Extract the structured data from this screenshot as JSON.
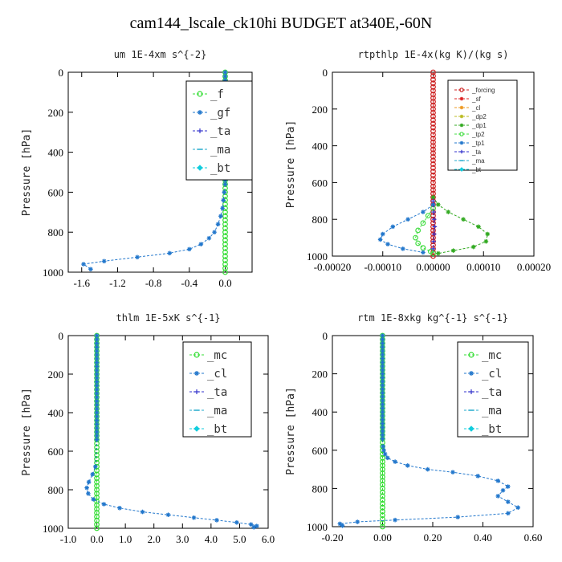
{
  "title": "cam144_lscale_ck10hi  BUDGET at340E,-60N",
  "chart_data": [
    {
      "type": "line",
      "title": "um   1E-4xm s^{-2}",
      "ylabel": "Pressure [hPa]",
      "ylim": [
        1000,
        0
      ],
      "xlim": [
        -1.75,
        0.3
      ],
      "xticks": [
        -1.6,
        -1.2,
        -0.8,
        -0.4,
        0.0
      ],
      "xtick_labels": [
        "-1.6",
        "-1.2",
        "-0.8",
        "-0.4",
        "0.0"
      ],
      "yticks": [
        0,
        200,
        400,
        600,
        800,
        1000
      ],
      "legend_position": "top-right",
      "series": [
        {
          "name": "_f",
          "color": "#33dd33",
          "marker": "circle",
          "x": [
            0,
            0,
            0,
            0,
            0,
            0,
            0,
            0,
            0,
            0,
            0,
            0,
            0,
            0,
            0,
            0,
            0,
            0,
            0,
            0,
            0,
            0,
            0,
            0,
            0,
            0,
            0,
            0,
            0,
            0,
            0,
            0,
            0,
            0,
            0,
            0,
            0,
            0,
            0,
            0,
            0,
            0,
            0,
            0,
            0,
            0,
            0,
            0,
            0,
            0,
            0
          ],
          "y": [
            0,
            20,
            40,
            60,
            80,
            100,
            120,
            140,
            160,
            180,
            200,
            220,
            240,
            260,
            280,
            300,
            320,
            340,
            360,
            380,
            400,
            420,
            440,
            460,
            480,
            500,
            520,
            540,
            560,
            580,
            600,
            620,
            640,
            660,
            680,
            700,
            720,
            740,
            760,
            780,
            800,
            820,
            840,
            860,
            880,
            900,
            920,
            940,
            960,
            980,
            1000
          ]
        },
        {
          "name": "_gf",
          "color": "#2277cc",
          "marker": "star",
          "x": [
            0,
            0,
            0,
            0,
            0,
            0,
            0,
            0,
            0,
            0,
            0,
            0,
            0,
            0,
            0,
            0,
            0,
            0,
            0,
            0,
            0,
            0,
            0,
            0,
            0,
            0,
            0,
            0,
            0,
            -0.01,
            -0.02,
            -0.03,
            -0.05,
            -0.08,
            -0.12,
            -0.18,
            -0.27,
            -0.4,
            -0.62,
            -0.98,
            -1.35,
            -1.58,
            -1.5
          ],
          "y": [
            0,
            20,
            40,
            60,
            80,
            100,
            120,
            140,
            160,
            180,
            200,
            220,
            240,
            260,
            280,
            300,
            320,
            340,
            360,
            380,
            400,
            420,
            440,
            460,
            480,
            500,
            520,
            540,
            560,
            600,
            640,
            680,
            720,
            760,
            800,
            830,
            860,
            885,
            905,
            925,
            945,
            960,
            985
          ]
        },
        {
          "name": "_ta",
          "color": "#3333cc",
          "marker": "plus",
          "x": [],
          "y": []
        },
        {
          "name": "_ma",
          "color": "#22aacc",
          "marker": "dash",
          "x": [],
          "y": []
        },
        {
          "name": "_bt",
          "color": "#11ccdd",
          "marker": "diamond",
          "x": [],
          "y": []
        }
      ]
    },
    {
      "type": "line",
      "title": "rtpthlp   1E-4x(kg K)/(kg s)",
      "ylabel": "Pressure [hPa]",
      "ylim": [
        1000,
        0
      ],
      "xlim": [
        -0.0002,
        0.0002
      ],
      "xticks": [
        -0.0002,
        -0.0001,
        0.0,
        0.0001,
        0.0002
      ],
      "xtick_labels": [
        "-0.00020",
        "-0.00010",
        "0.00000",
        "0.00010",
        "0.00020"
      ],
      "yticks": [
        0,
        200,
        400,
        600,
        800,
        1000
      ],
      "legend_position": "top-right",
      "series": [
        {
          "name": "_forcing",
          "color": "#cc2222",
          "marker": "circle",
          "x": [
            0,
            0,
            0,
            0,
            0,
            0,
            0,
            0,
            0,
            0,
            0,
            0,
            0,
            0,
            0,
            0,
            0,
            0,
            0,
            0,
            0,
            0,
            0,
            0,
            0,
            0,
            0,
            0,
            0,
            0,
            0,
            0,
            0,
            0,
            0,
            0,
            0,
            0,
            0,
            0,
            0,
            0,
            0,
            0,
            0,
            0,
            0,
            0,
            0,
            0,
            0
          ],
          "y": [
            0,
            20,
            40,
            60,
            80,
            100,
            120,
            140,
            160,
            180,
            200,
            220,
            240,
            260,
            280,
            300,
            320,
            340,
            360,
            380,
            400,
            420,
            440,
            460,
            480,
            500,
            520,
            540,
            560,
            580,
            600,
            620,
            640,
            660,
            680,
            700,
            720,
            740,
            760,
            780,
            800,
            820,
            840,
            860,
            880,
            900,
            920,
            940,
            960,
            980,
            1000
          ]
        },
        {
          "name": "_sf",
          "color": "#dd2222",
          "marker": "star",
          "x": [],
          "y": []
        },
        {
          "name": "_cl",
          "color": "#ee9922",
          "marker": "star",
          "x": [],
          "y": []
        },
        {
          "name": "_dp2",
          "color": "#bbbb22",
          "marker": "star",
          "x": [],
          "y": []
        },
        {
          "name": "_dp1",
          "color": "#33aa22",
          "marker": "star",
          "x": [
            0.0,
            1e-05,
            3e-05,
            6e-05,
            9e-05,
            0.000108,
            0.000105,
            8e-05,
            4e-05,
            1e-05
          ],
          "y": [
            680,
            720,
            760,
            800,
            840,
            880,
            920,
            950,
            970,
            985
          ]
        },
        {
          "name": "_tp2",
          "color": "#44dd44",
          "marker": "circle",
          "x": [
            0.0,
            -1e-05,
            -2e-05,
            -3e-05,
            -3.5e-05,
            -3e-05,
            -2e-05,
            -5e-06,
            0.0
          ],
          "y": [
            740,
            780,
            820,
            860,
            900,
            930,
            955,
            975,
            985
          ]
        },
        {
          "name": "_tp1",
          "color": "#2277cc",
          "marker": "star",
          "x": [
            0.0,
            -2e-05,
            -5e-05,
            -8e-05,
            -0.0001,
            -0.000105,
            -9e-05,
            -6e-05,
            -2e-05
          ],
          "y": [
            720,
            760,
            800,
            840,
            880,
            910,
            935,
            960,
            980
          ]
        },
        {
          "name": "_ta",
          "color": "#3333cc",
          "marker": "plus",
          "x": [
            0,
            1e-06,
            2e-06,
            3e-06,
            2e-06,
            1e-06,
            0
          ],
          "y": [
            700,
            760,
            800,
            840,
            880,
            920,
            960
          ]
        },
        {
          "name": "_ma",
          "color": "#22aacc",
          "marker": "dash",
          "x": [],
          "y": []
        },
        {
          "name": "_bt",
          "color": "#11ccdd",
          "marker": "diamond",
          "x": [],
          "y": []
        }
      ]
    },
    {
      "type": "line",
      "title": "thlm   1E-5xK s^{-1}",
      "ylabel": "Pressure [hPa]",
      "ylim": [
        1000,
        0
      ],
      "xlim": [
        -1.0,
        6.0
      ],
      "xticks": [
        -1.0,
        0.0,
        1.0,
        2.0,
        3.0,
        4.0,
        5.0,
        6.0
      ],
      "xtick_labels": [
        "-1.0",
        "0.0",
        "1.0",
        "2.0",
        "3.0",
        "4.0",
        "5.0",
        "6.0"
      ],
      "yticks": [
        0,
        200,
        400,
        600,
        800,
        1000
      ],
      "legend_position": "top-right",
      "series": [
        {
          "name": "_mc",
          "color": "#33dd33",
          "marker": "circle",
          "x": [
            0,
            0,
            0,
            0,
            0,
            0,
            0,
            0,
            0,
            0,
            0,
            0,
            0,
            0,
            0,
            0,
            0,
            0,
            0,
            0,
            0,
            0,
            0,
            0,
            0,
            0,
            0,
            0,
            0,
            0,
            0,
            0,
            0,
            0,
            0,
            0,
            0,
            0,
            0,
            0,
            0,
            0,
            0,
            0,
            0,
            0,
            0,
            0,
            0,
            0,
            0
          ],
          "y": [
            0,
            20,
            40,
            60,
            80,
            100,
            120,
            140,
            160,
            180,
            200,
            220,
            240,
            260,
            280,
            300,
            320,
            340,
            360,
            380,
            400,
            420,
            440,
            460,
            480,
            500,
            520,
            540,
            560,
            580,
            600,
            620,
            640,
            660,
            680,
            700,
            720,
            740,
            760,
            780,
            800,
            820,
            840,
            860,
            880,
            900,
            920,
            940,
            960,
            980,
            1000
          ]
        },
        {
          "name": "_cl",
          "color": "#2277cc",
          "marker": "star",
          "x": [
            0,
            0,
            0,
            0,
            0,
            0,
            0,
            0,
            0,
            0,
            0,
            0,
            0,
            0,
            0,
            0,
            0,
            0,
            0,
            0,
            0,
            0,
            0,
            0,
            0,
            0,
            0,
            0,
            -0.05,
            -0.15,
            -0.28,
            -0.35,
            -0.3,
            -0.12,
            0.25,
            0.8,
            1.6,
            2.5,
            3.4,
            4.2,
            4.9,
            5.4,
            5.6,
            5.5
          ],
          "y": [
            0,
            20,
            40,
            60,
            80,
            100,
            120,
            140,
            160,
            180,
            200,
            220,
            240,
            260,
            280,
            300,
            320,
            340,
            360,
            380,
            400,
            420,
            440,
            460,
            480,
            500,
            520,
            540,
            680,
            720,
            760,
            790,
            820,
            850,
            875,
            895,
            915,
            930,
            945,
            958,
            970,
            980,
            988,
            995
          ]
        },
        {
          "name": "_ta",
          "color": "#3333cc",
          "marker": "plus",
          "x": [],
          "y": []
        },
        {
          "name": "_ma",
          "color": "#22aacc",
          "marker": "dash",
          "x": [],
          "y": []
        },
        {
          "name": "_bt",
          "color": "#11ccdd",
          "marker": "diamond",
          "x": [],
          "y": []
        }
      ]
    },
    {
      "type": "line",
      "title": "rtm   1E-8xkg kg^{-1} s^{-1}",
      "ylabel": "Pressure [hPa]",
      "ylim": [
        1000,
        0
      ],
      "xlim": [
        -0.2,
        0.6
      ],
      "xticks": [
        -0.2,
        0.0,
        0.2,
        0.4,
        0.6
      ],
      "xtick_labels": [
        "-0.20",
        "0.00",
        "0.20",
        "0.40",
        "0.60"
      ],
      "yticks": [
        0,
        200,
        400,
        600,
        800,
        1000
      ],
      "legend_position": "top-right",
      "series": [
        {
          "name": "_mc",
          "color": "#33dd33",
          "marker": "circle",
          "x": [
            0,
            0,
            0,
            0,
            0,
            0,
            0,
            0,
            0,
            0,
            0,
            0,
            0,
            0,
            0,
            0,
            0,
            0,
            0,
            0,
            0,
            0,
            0,
            0,
            0,
            0,
            0,
            0,
            0,
            0,
            0,
            0,
            0,
            0,
            0,
            0,
            0,
            0,
            0,
            0,
            0,
            0,
            0,
            0,
            0,
            0,
            0,
            0,
            0,
            0,
            0
          ],
          "y": [
            0,
            20,
            40,
            60,
            80,
            100,
            120,
            140,
            160,
            180,
            200,
            220,
            240,
            260,
            280,
            300,
            320,
            340,
            360,
            380,
            400,
            420,
            440,
            460,
            480,
            500,
            520,
            540,
            560,
            580,
            600,
            620,
            640,
            660,
            680,
            700,
            720,
            740,
            760,
            780,
            800,
            820,
            840,
            860,
            880,
            900,
            920,
            940,
            960,
            980,
            1000
          ]
        },
        {
          "name": "_cl",
          "color": "#2277cc",
          "marker": "star",
          "x": [
            0,
            0,
            0,
            0,
            0,
            0,
            0,
            0,
            0,
            0,
            0,
            0,
            0,
            0,
            0,
            0,
            0,
            0,
            0,
            0,
            0,
            0,
            0,
            0,
            0,
            0,
            0,
            0,
            0.002,
            0.005,
            0.01,
            0.02,
            0.05,
            0.1,
            0.18,
            0.28,
            0.38,
            0.46,
            0.5,
            0.48,
            0.46,
            0.5,
            0.54,
            0.5,
            0.3,
            0.05,
            -0.1,
            -0.17,
            -0.16
          ],
          "y": [
            0,
            20,
            40,
            60,
            80,
            100,
            120,
            140,
            160,
            180,
            200,
            220,
            240,
            260,
            280,
            300,
            320,
            340,
            360,
            380,
            400,
            420,
            440,
            460,
            480,
            500,
            520,
            540,
            580,
            600,
            620,
            640,
            660,
            680,
            700,
            715,
            735,
            760,
            790,
            810,
            840,
            870,
            900,
            930,
            950,
            965,
            975,
            985,
            995
          ]
        },
        {
          "name": "_ta",
          "color": "#3333cc",
          "marker": "plus",
          "x": [],
          "y": []
        },
        {
          "name": "_ma",
          "color": "#22aacc",
          "marker": "dash",
          "x": [],
          "y": []
        },
        {
          "name": "_bt",
          "color": "#11ccdd",
          "marker": "diamond",
          "x": [],
          "y": []
        }
      ]
    }
  ]
}
